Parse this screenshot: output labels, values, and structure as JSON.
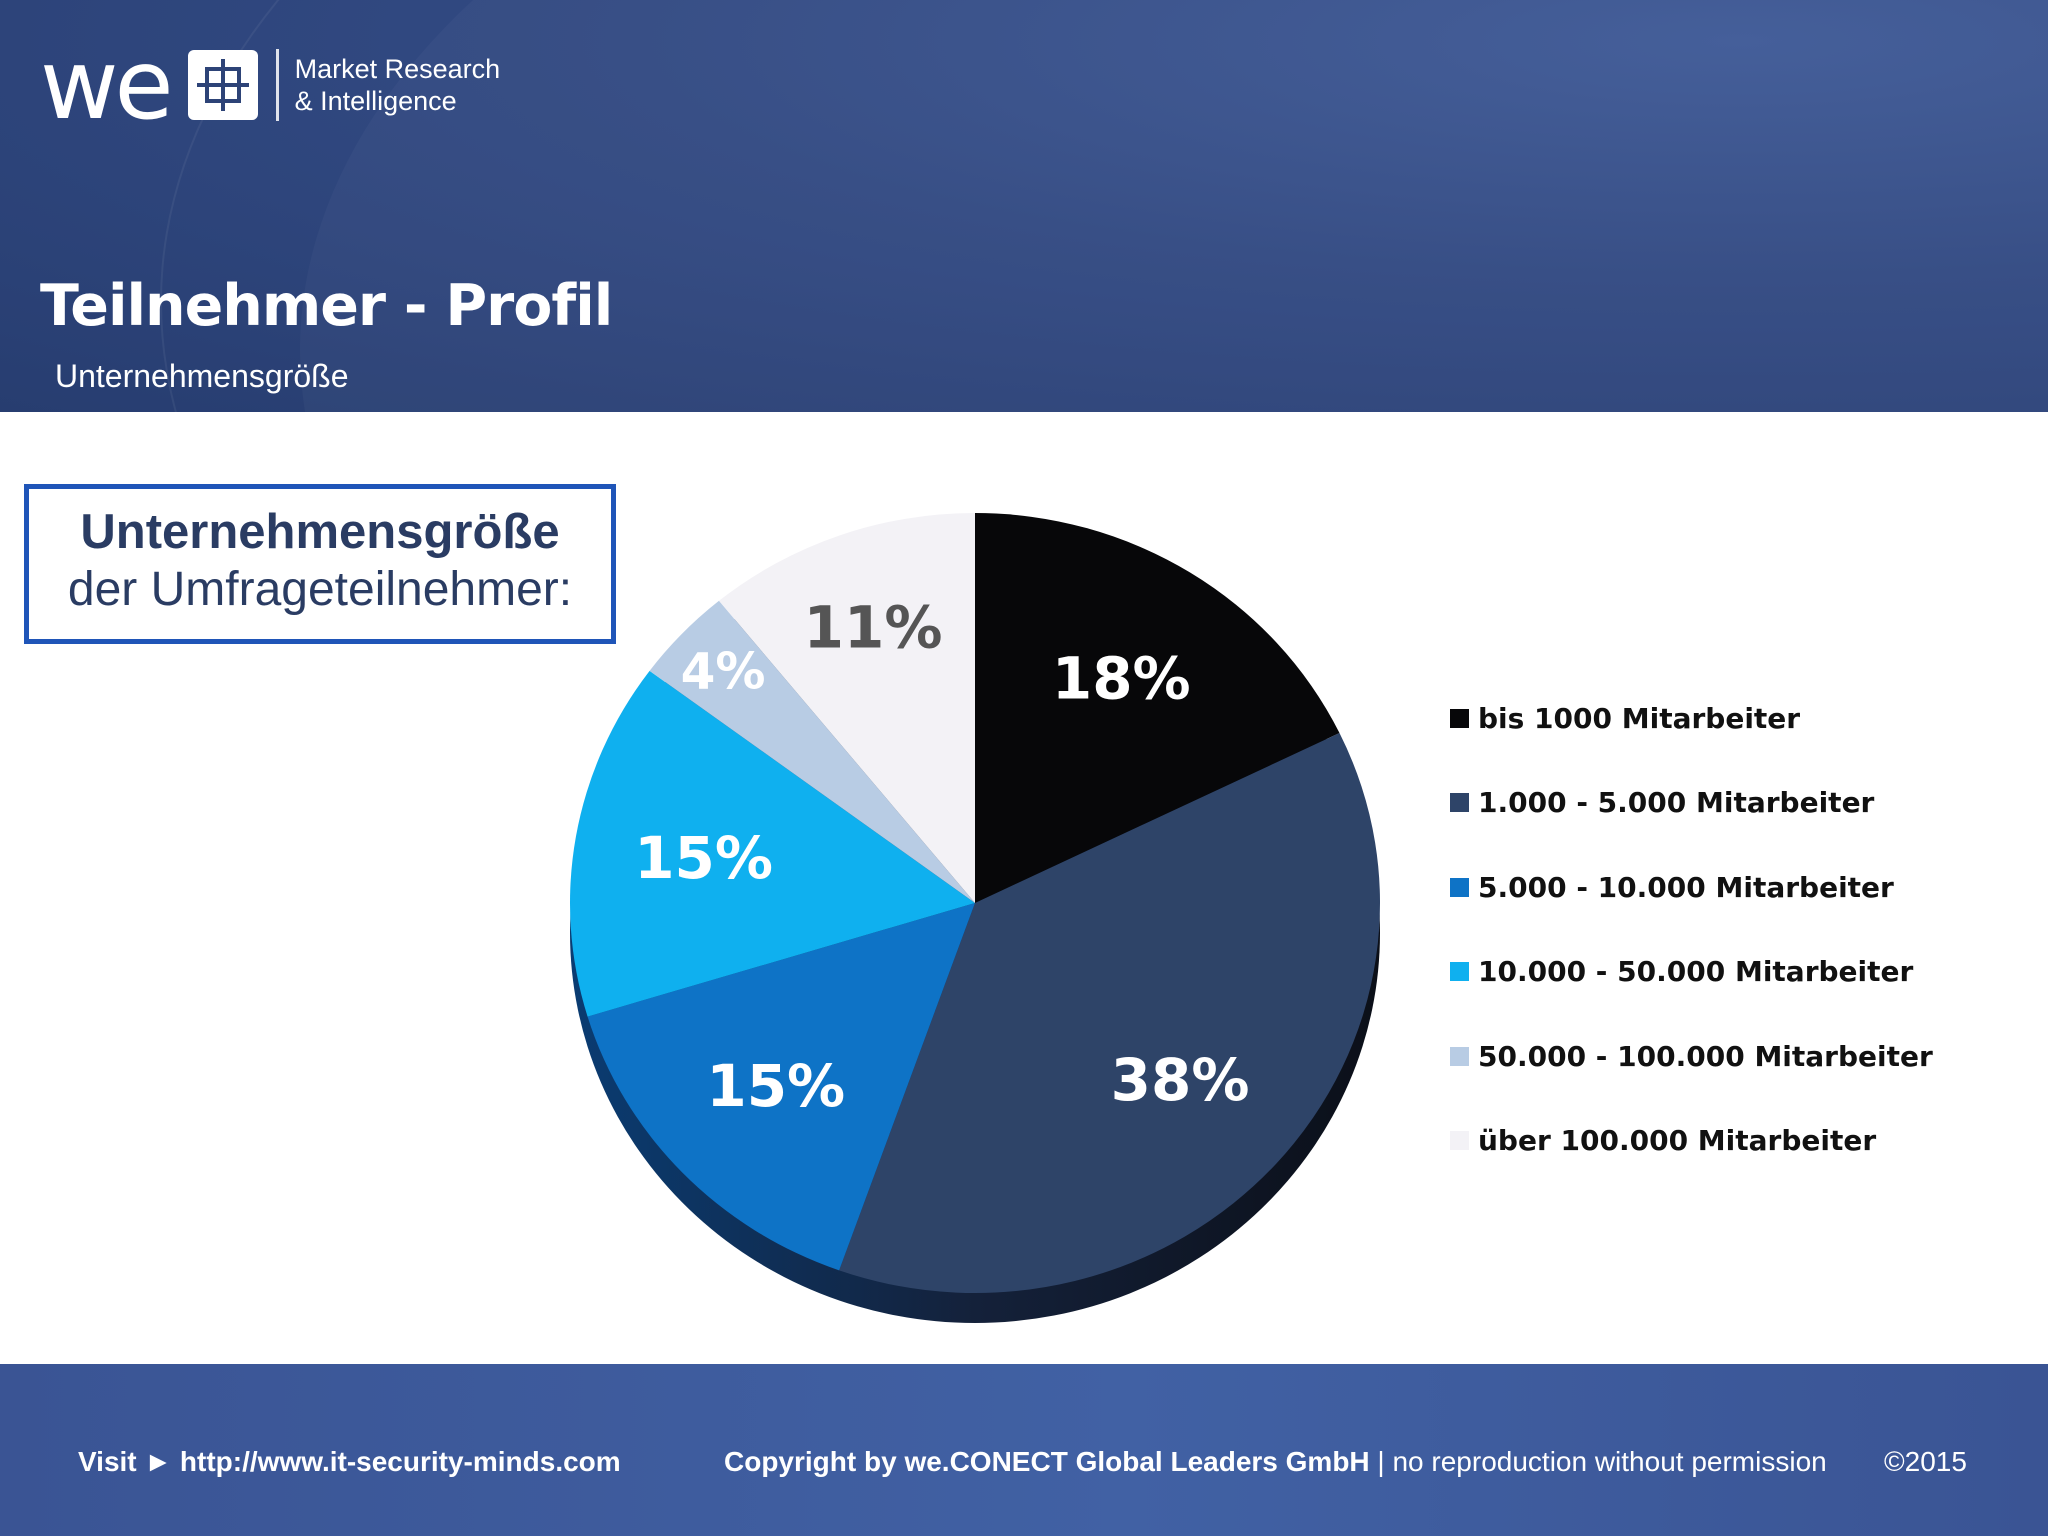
{
  "header": {
    "logo_text": "we",
    "logo_tagline_1": "Market Research",
    "logo_tagline_2": "& Intelligence",
    "title": "Teilnehmer - Profil",
    "subtitle": "Unternehmensgröße"
  },
  "callout": {
    "line1": "Unternehmensgröße",
    "line2": "der Umfrageteilnehmer:"
  },
  "chart_data": {
    "type": "pie",
    "categories": [
      "bis 1000 Mitarbeiter",
      "1.000 - 5.000 Mitarbeiter",
      "5.000 - 10.000 Mitarbeiter",
      "10.000 - 50.000 Mitarbeiter",
      "50.000 - 100.000 Mitarbeiter",
      "über 100.000 Mitarbeiter"
    ],
    "values": [
      18,
      38,
      15,
      15,
      4,
      11
    ],
    "labels": [
      "18%",
      "38%",
      "15%",
      "15%",
      "4%",
      "11%"
    ],
    "colors": [
      "#070709",
      "#2e4468",
      "#0e73c6",
      "#0fb0ef",
      "#b8cce4",
      "#f3f2f6"
    ],
    "label_colors": [
      "#ffffff",
      "#ffffff",
      "#ffffff",
      "#ffffff",
      "#ffffff",
      "#555555"
    ],
    "legend_position": "right"
  },
  "footer": {
    "visit_label": "Visit ►",
    "url": "http://www.it-security-minds.com",
    "copyright": "Copyright by we.CONECT Global Leaders GmbH",
    "notice": "| no reproduction without permission",
    "year": "©2015"
  }
}
